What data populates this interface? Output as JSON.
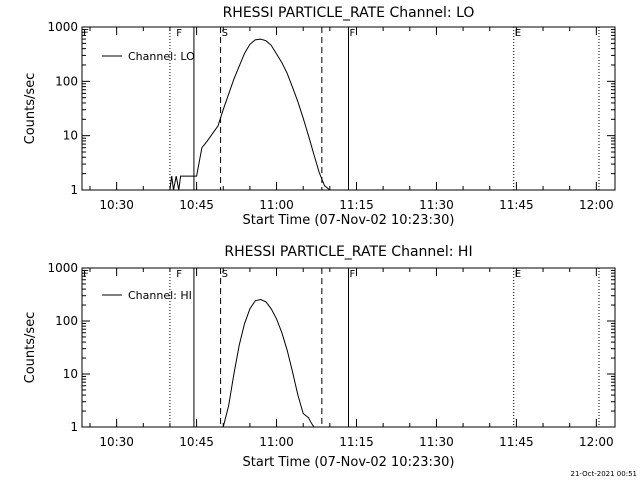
{
  "chart_data": [
    {
      "type": "line",
      "title": "RHESSI PARTICLE_RATE Channel: LO",
      "xlabel": "Start Time (07-Nov-02 10:23:30)",
      "ylabel": "Counts/sec",
      "xlim": [
        "10:23:30",
        "12:03:30"
      ],
      "ylim": [
        1,
        1000
      ],
      "yscale": "log",
      "xticks": [
        "10:30",
        "10:45",
        "11:00",
        "11:15",
        "11:30",
        "11:45",
        "12:00"
      ],
      "yticks": [
        "1",
        "10",
        "100",
        "1000"
      ],
      "legend": {
        "entries": [
          "Channel: LO"
        ],
        "position": "top-left"
      },
      "series": [
        {
          "name": "Channel: LO",
          "x": [
            "10:40:00",
            "10:40:20",
            "10:40:40",
            "10:41:10",
            "10:41:40",
            "10:42:00",
            "10:43:00",
            "10:44:00",
            "10:45:00",
            "10:46:00",
            "10:47:00",
            "10:48:00",
            "10:49:00",
            "10:50:00",
            "10:52:00",
            "10:54:00",
            "10:55:00",
            "10:56:00",
            "10:57:00",
            "10:58:00",
            "10:59:00",
            "11:00:00",
            "11:01:00",
            "11:02:00",
            "11:03:00",
            "11:04:00",
            "11:05:00",
            "11:06:00",
            "11:07:00",
            "11:08:00",
            "11:09:00",
            "11:10:00"
          ],
          "values": [
            1,
            1.8,
            1,
            1.8,
            1,
            1.8,
            1.8,
            1.8,
            1.8,
            6,
            8,
            11,
            15,
            30,
            110,
            330,
            480,
            580,
            600,
            560,
            460,
            320,
            220,
            140,
            78,
            42,
            21,
            10,
            4.5,
            2.1,
            1.2,
            1
          ]
        }
      ],
      "markers": [
        {
          "label": "F",
          "time": "10:23:30",
          "style": "solid"
        },
        {
          "label": "",
          "time": "10:40:00",
          "style": "dotted"
        },
        {
          "label": "F",
          "time": "10:41:00",
          "style": "text"
        },
        {
          "label": "",
          "time": "10:44:30",
          "style": "solid"
        },
        {
          "label": "S",
          "time": "10:49:30",
          "style": "dashed"
        },
        {
          "label": "",
          "time": "11:08:30",
          "style": "dashed"
        },
        {
          "label": "F",
          "time": "11:13:30",
          "style": "solid"
        },
        {
          "label": "E",
          "time": "11:44:30",
          "style": "dotted"
        },
        {
          "label": "",
          "time": "12:00:30",
          "style": "dotted"
        }
      ]
    },
    {
      "type": "line",
      "title": "RHESSI PARTICLE_RATE Channel: HI",
      "xlabel": "Start Time (07-Nov-02 10:23:30)",
      "ylabel": "Counts/sec",
      "xlim": [
        "10:23:30",
        "12:03:30"
      ],
      "ylim": [
        1,
        1000
      ],
      "yscale": "log",
      "xticks": [
        "10:30",
        "10:45",
        "11:00",
        "11:15",
        "11:30",
        "11:45",
        "12:00"
      ],
      "yticks": [
        "1",
        "10",
        "100",
        "1000"
      ],
      "legend": {
        "entries": [
          "Channel: HI"
        ],
        "position": "top-left"
      },
      "series": [
        {
          "name": "Channel: HI",
          "x": [
            "10:50:00",
            "10:51:00",
            "10:52:00",
            "10:53:00",
            "10:54:00",
            "10:55:00",
            "10:56:00",
            "10:57:00",
            "10:58:00",
            "10:59:00",
            "11:00:00",
            "11:01:00",
            "11:02:00",
            "11:03:00",
            "11:04:00",
            "11:05:00",
            "11:06:00",
            "11:06:30",
            "11:07:00"
          ],
          "values": [
            1,
            2.5,
            10,
            35,
            90,
            170,
            240,
            255,
            230,
            170,
            110,
            60,
            28,
            11,
            4,
            1.8,
            1.5,
            1.2,
            1
          ]
        }
      ],
      "markers": [
        {
          "label": "F",
          "time": "10:23:30",
          "style": "solid"
        },
        {
          "label": "",
          "time": "10:40:00",
          "style": "dotted"
        },
        {
          "label": "F",
          "time": "10:41:00",
          "style": "text"
        },
        {
          "label": "",
          "time": "10:44:30",
          "style": "solid"
        },
        {
          "label": "S",
          "time": "10:49:30",
          "style": "dashed"
        },
        {
          "label": "",
          "time": "11:08:30",
          "style": "dashed"
        },
        {
          "label": "F",
          "time": "11:13:30",
          "style": "solid"
        },
        {
          "label": "E",
          "time": "11:44:30",
          "style": "dotted"
        },
        {
          "label": "",
          "time": "12:00:30",
          "style": "dotted"
        }
      ]
    }
  ],
  "footer": {
    "timestamp": "21-Oct-2021 00:51"
  }
}
